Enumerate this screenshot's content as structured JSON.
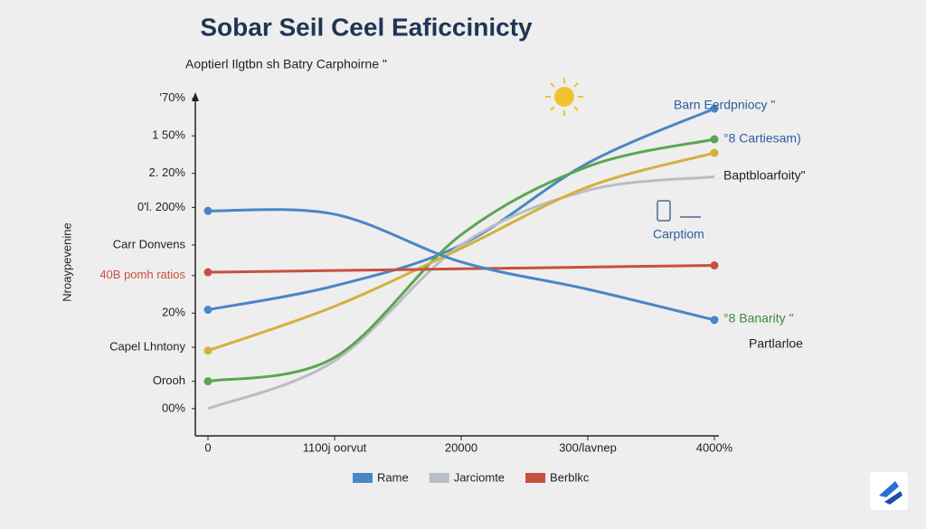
{
  "chart_data": {
    "type": "line",
    "title": "Sobar Seil Ceel Eaficcinicty",
    "subtitle": "Aoptierl Ilgtbn sh Batry Carphoirne \"",
    "y_label": "Nroaypevenine",
    "categories": [
      "0",
      "1100j oorvut",
      "20000",
      "300/lavnep",
      "4000%"
    ],
    "ylim": [
      0,
      100
    ],
    "yticks": [
      {
        "value": 99,
        "label": "'70%"
      },
      {
        "value": 88,
        "label": "1 50%"
      },
      {
        "value": 77,
        "label": "2. 20%"
      },
      {
        "value": 67,
        "label": "0'l. 200%"
      },
      {
        "value": 56,
        "label": "Carr Donvens"
      },
      {
        "value": 47,
        "label": "40B pomh ratios"
      },
      {
        "value": 36,
        "label": "20%"
      },
      {
        "value": 26,
        "label": "Capel Lhntony"
      },
      {
        "value": 16,
        "label": "Orooh"
      },
      {
        "value": 8,
        "label": "00%"
      }
    ],
    "series": [
      {
        "name": "Rame",
        "color": "#4a86c5",
        "values": [
          37,
          44,
          56,
          80,
          96
        ]
      },
      {
        "name": "Jarciomte",
        "color": "#b9bec4",
        "values": [
          8,
          22,
          56,
          72,
          76
        ]
      },
      {
        "color": "#5aa650",
        "values": [
          16,
          23,
          59,
          79,
          87
        ]
      },
      {
        "color": "#d4b03c",
        "values": [
          25,
          38,
          55,
          73,
          83
        ]
      },
      {
        "name": "Berblkc",
        "color": "#c9503e",
        "values": [
          48,
          48.5,
          49,
          49.5,
          50
        ]
      },
      {
        "color": "#4a86c5",
        "values": [
          66,
          65,
          51,
          43,
          34
        ]
      }
    ],
    "annotations": [
      "Barn Eerdpniocy \"",
      "°8 Cartiesam)",
      "Baptbloarfoity\"",
      "Carptiom",
      "°8 Banarity \"",
      "Partlarloe"
    ]
  }
}
